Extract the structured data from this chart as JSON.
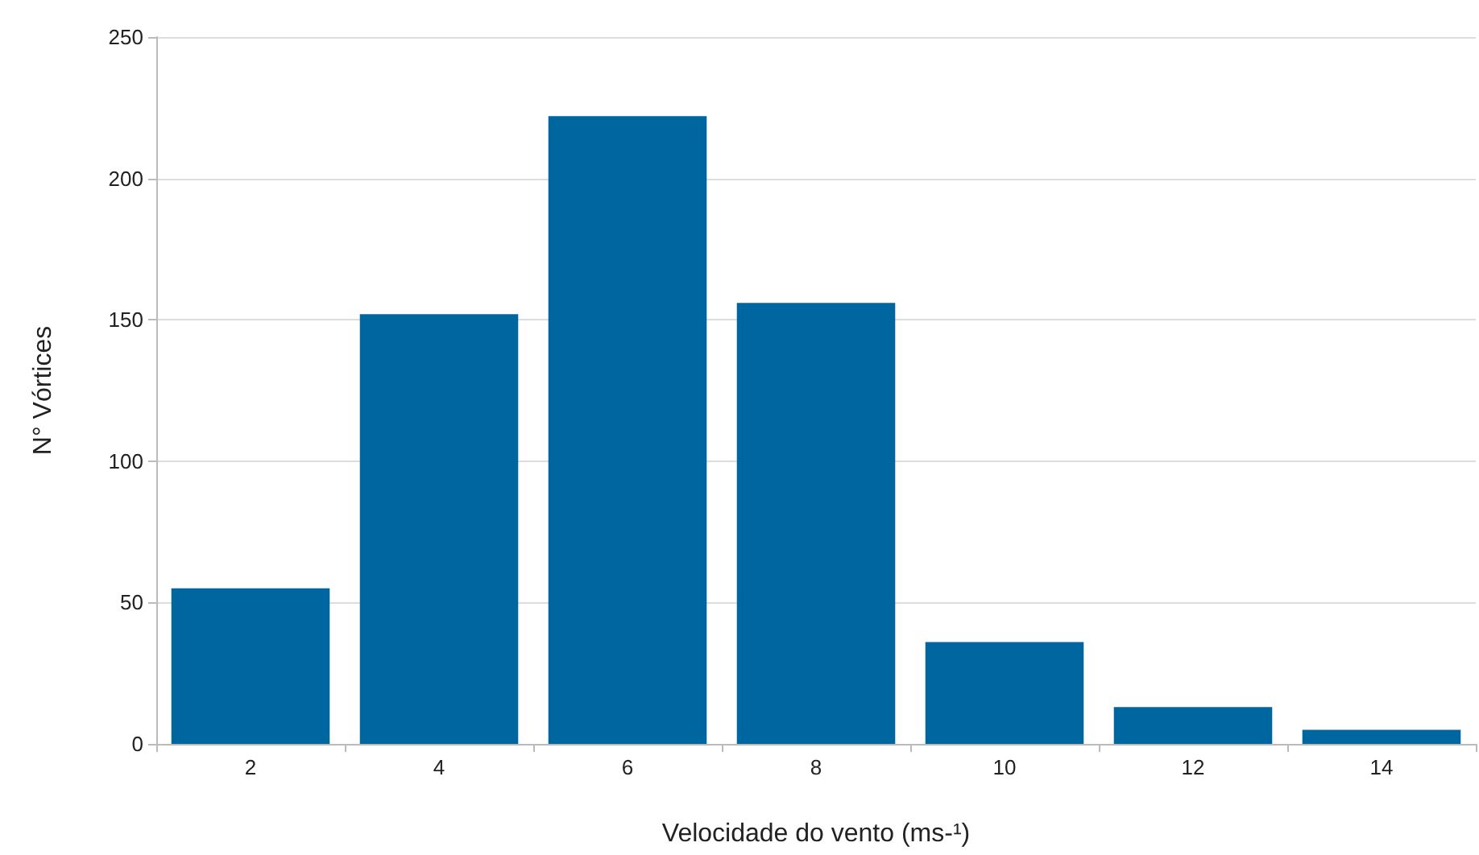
{
  "chart_data": {
    "type": "bar",
    "xlabel": "Velocidade do vento (ms-¹)",
    "ylabel": "N° Vórtices",
    "categories": [
      "2",
      "4",
      "6",
      "8",
      "10",
      "12",
      "14"
    ],
    "values": [
      55,
      152,
      222,
      156,
      36,
      13,
      5
    ],
    "color": "#0066a0",
    "ylim": [
      0,
      250
    ],
    "yticks": [
      0,
      50,
      100,
      150,
      200,
      250
    ],
    "grid": "y"
  }
}
